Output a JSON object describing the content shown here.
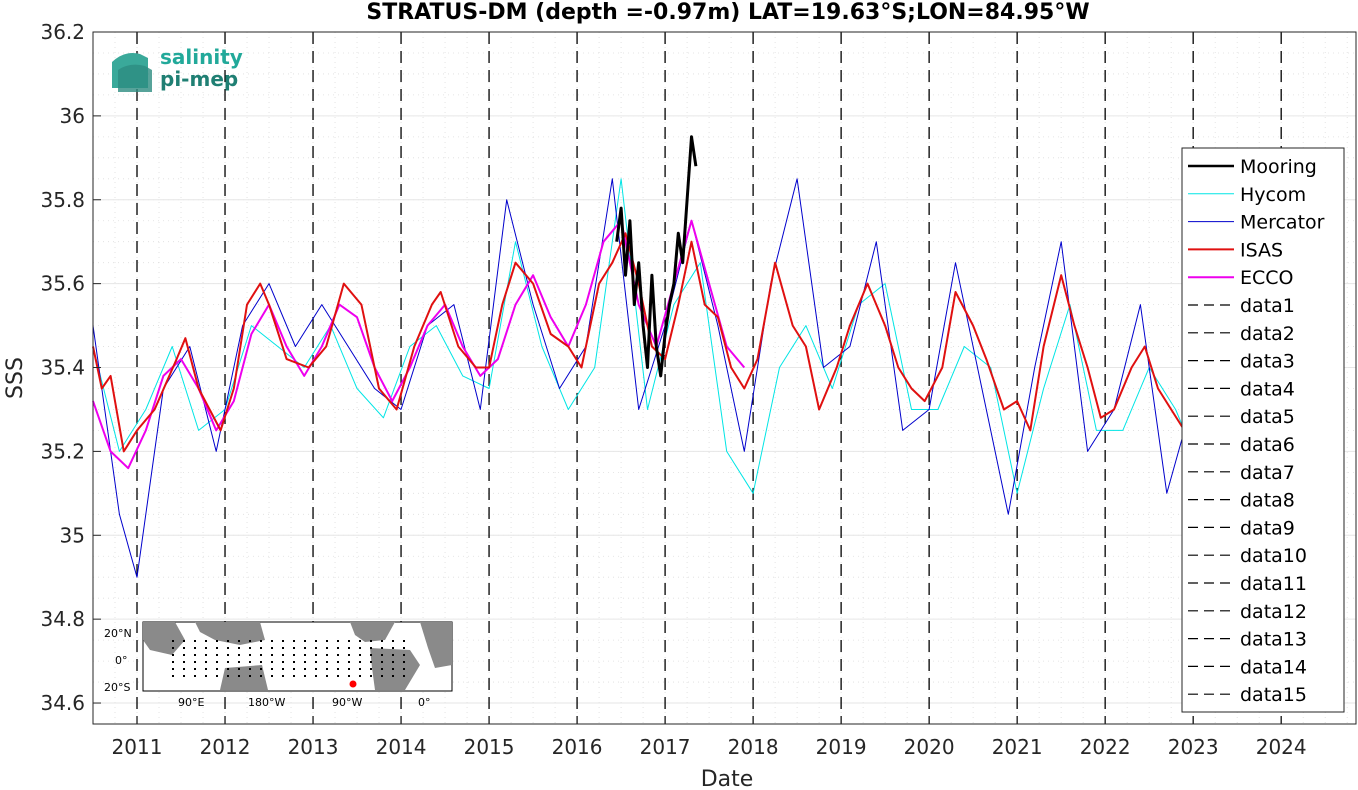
{
  "chart_data": {
    "type": "line",
    "title": "STRATUS-DM (depth =-0.97m) LAT=19.63°S;LON=84.95°W",
    "xlabel": "Date",
    "ylabel": "SSS",
    "xlim": [
      2010.5,
      2024.85
    ],
    "ylim": [
      34.55,
      36.2
    ],
    "x_ticks": [
      2011,
      2012,
      2013,
      2014,
      2015,
      2016,
      2017,
      2018,
      2019,
      2020,
      2021,
      2022,
      2023,
      2024
    ],
    "x_tick_labels": [
      "2011",
      "2012",
      "2013",
      "2014",
      "2015",
      "2016",
      "2017",
      "2018",
      "2019",
      "2020",
      "2021",
      "2022",
      "2023",
      "2024"
    ],
    "y_ticks": [
      34.6,
      34.8,
      35,
      35.2,
      35.4,
      35.6,
      35.8,
      36,
      36.2
    ],
    "y_tick_labels": [
      "34.6",
      "34.8",
      "35",
      "35.2",
      "35.4",
      "35.6",
      "35.8",
      "36",
      "36.2"
    ],
    "grid": true,
    "legend_position": "right",
    "series": [
      {
        "name": "Mooring",
        "color": "#000000",
        "x": [
          2016.45,
          2016.5,
          2016.55,
          2016.6,
          2016.65,
          2016.7,
          2016.75,
          2016.8,
          2016.85,
          2016.9,
          2016.95,
          2017.0,
          2017.05,
          2017.1,
          2017.15,
          2017.2,
          2017.25,
          2017.3,
          2017.35
        ],
        "y": [
          35.7,
          35.78,
          35.62,
          35.75,
          35.55,
          35.65,
          35.5,
          35.4,
          35.62,
          35.45,
          35.38,
          35.48,
          35.55,
          35.6,
          35.72,
          35.65,
          35.8,
          35.95,
          35.88
        ]
      },
      {
        "name": "Hycom",
        "color": "#00e5e5",
        "x": [
          2010.5,
          2010.8,
          2011.1,
          2011.4,
          2011.7,
          2012.0,
          2012.3,
          2012.6,
          2012.9,
          2013.2,
          2013.5,
          2013.8,
          2014.1,
          2014.4,
          2014.7,
          2015.0,
          2015.3,
          2015.6,
          2015.9,
          2016.2,
          2016.5,
          2016.8,
          2017.1,
          2017.4,
          2017.7,
          2018.0,
          2018.3,
          2018.6,
          2018.9,
          2019.2,
          2019.5,
          2019.8,
          2020.1,
          2020.4,
          2020.7,
          2021.0,
          2021.3,
          2021.6,
          2021.9,
          2022.2,
          2022.5,
          2022.8,
          2023.0
        ],
        "y": [
          35.45,
          35.2,
          35.3,
          35.45,
          35.25,
          35.3,
          35.5,
          35.45,
          35.4,
          35.5,
          35.35,
          35.28,
          35.45,
          35.5,
          35.38,
          35.35,
          35.7,
          35.45,
          35.3,
          35.4,
          35.85,
          35.3,
          35.55,
          35.65,
          35.2,
          35.1,
          35.4,
          35.5,
          35.35,
          35.55,
          35.6,
          35.3,
          35.3,
          35.45,
          35.4,
          35.1,
          35.35,
          35.55,
          35.25,
          35.25,
          35.4,
          35.3,
          35.2
        ]
      },
      {
        "name": "Mercator",
        "color": "#0000cc",
        "x": [
          2010.5,
          2010.8,
          2011.0,
          2011.3,
          2011.6,
          2011.9,
          2012.2,
          2012.5,
          2012.8,
          2013.1,
          2013.4,
          2013.7,
          2014.0,
          2014.3,
          2014.6,
          2014.9,
          2015.2,
          2015.5,
          2015.8,
          2016.1,
          2016.4,
          2016.7,
          2017.0,
          2017.3,
          2017.6,
          2017.9,
          2018.2,
          2018.5,
          2018.8,
          2019.1,
          2019.4,
          2019.7,
          2020.0,
          2020.3,
          2020.6,
          2020.9,
          2021.2,
          2021.5,
          2021.8,
          2022.1,
          2022.4,
          2022.7,
          2022.9
        ],
        "y": [
          35.5,
          35.05,
          34.9,
          35.35,
          35.45,
          35.2,
          35.5,
          35.6,
          35.45,
          35.55,
          35.45,
          35.35,
          35.3,
          35.5,
          35.55,
          35.3,
          35.8,
          35.55,
          35.35,
          35.45,
          35.85,
          35.3,
          35.5,
          35.75,
          35.5,
          35.2,
          35.6,
          35.85,
          35.4,
          35.45,
          35.7,
          35.25,
          35.3,
          35.65,
          35.35,
          35.05,
          35.4,
          35.7,
          35.2,
          35.3,
          35.55,
          35.1,
          35.25
        ]
      },
      {
        "name": "ISAS",
        "color": "#e01010",
        "x": [
          2010.5,
          2010.6,
          2010.7,
          2010.85,
          2011.0,
          2011.2,
          2011.45,
          2011.55,
          2011.7,
          2011.95,
          2012.1,
          2012.25,
          2012.4,
          2012.5,
          2012.7,
          2012.95,
          2013.15,
          2013.35,
          2013.55,
          2013.75,
          2013.95,
          2014.15,
          2014.35,
          2014.45,
          2014.65,
          2014.85,
          2015.0,
          2015.15,
          2015.3,
          2015.5,
          2015.7,
          2015.9,
          2016.05,
          2016.25,
          2016.4,
          2016.55,
          2016.7,
          2016.85,
          2017.0,
          2017.15,
          2017.3,
          2017.45,
          2017.6,
          2017.75,
          2017.9,
          2018.05,
          2018.25,
          2018.45,
          2018.6,
          2018.75,
          2018.95,
          2019.1,
          2019.3,
          2019.5,
          2019.65,
          2019.8,
          2019.95,
          2020.15,
          2020.3,
          2020.5,
          2020.65,
          2020.85,
          2021.0,
          2021.15,
          2021.3,
          2021.5,
          2021.65,
          2021.8,
          2021.95,
          2022.1,
          2022.3,
          2022.45,
          2022.6,
          2022.75,
          2022.9
        ],
        "y": [
          35.45,
          35.35,
          35.38,
          35.2,
          35.25,
          35.3,
          35.42,
          35.47,
          35.35,
          35.25,
          35.35,
          35.55,
          35.6,
          35.55,
          35.42,
          35.4,
          35.45,
          35.6,
          35.55,
          35.35,
          35.3,
          35.45,
          35.55,
          35.58,
          35.45,
          35.4,
          35.4,
          35.55,
          35.65,
          35.6,
          35.48,
          35.45,
          35.4,
          35.6,
          35.65,
          35.72,
          35.6,
          35.45,
          35.42,
          35.55,
          35.7,
          35.55,
          35.52,
          35.4,
          35.35,
          35.42,
          35.65,
          35.5,
          35.45,
          35.3,
          35.4,
          35.5,
          35.6,
          35.5,
          35.4,
          35.35,
          35.32,
          35.4,
          35.58,
          35.5,
          35.42,
          35.3,
          35.32,
          35.25,
          35.45,
          35.62,
          35.5,
          35.4,
          35.28,
          35.3,
          35.4,
          35.45,
          35.35,
          35.3,
          35.25
        ]
      },
      {
        "name": "ECCO",
        "color": "#ee00ee",
        "x": [
          2010.5,
          2010.7,
          2010.9,
          2011.1,
          2011.3,
          2011.5,
          2011.7,
          2011.9,
          2012.1,
          2012.3,
          2012.5,
          2012.7,
          2012.9,
          2013.1,
          2013.3,
          2013.5,
          2013.7,
          2013.9,
          2014.1,
          2014.3,
          2014.5,
          2014.7,
          2014.9,
          2015.1,
          2015.3,
          2015.5,
          2015.7,
          2015.9,
          2016.1,
          2016.3,
          2016.5,
          2016.7,
          2016.9,
          2017.1,
          2017.3,
          2017.5,
          2017.7,
          2017.9
        ],
        "y": [
          35.32,
          35.2,
          35.16,
          35.25,
          35.38,
          35.42,
          35.35,
          35.25,
          35.32,
          35.48,
          35.55,
          35.45,
          35.38,
          35.45,
          35.55,
          35.52,
          35.4,
          35.32,
          35.4,
          35.5,
          35.55,
          35.45,
          35.38,
          35.42,
          35.55,
          35.62,
          35.52,
          35.45,
          35.55,
          35.7,
          35.75,
          35.55,
          35.45,
          35.6,
          35.75,
          35.6,
          35.45,
          35.4
        ]
      }
    ],
    "dashed_verticals": [
      2011,
      2012,
      2013,
      2014,
      2015,
      2016,
      2017,
      2018,
      2019,
      2020,
      2021,
      2022,
      2023,
      2024
    ],
    "legend_entries": [
      "Mooring",
      "Hycom",
      "Mercator",
      "ISAS",
      "ECCO",
      "data1",
      "data2",
      "data3",
      "data4",
      "data5",
      "data6",
      "data7",
      "data8",
      "data9",
      "data10",
      "data11",
      "data12",
      "data13",
      "data14",
      "data15"
    ]
  },
  "logo": {
    "line1": "salinity",
    "line2": "pi-mep"
  },
  "inset_map": {
    "lat_labels": [
      "20°N",
      "0°",
      "20°S"
    ],
    "lon_labels": [
      "90°E",
      "180°W",
      "90°W",
      "0°"
    ],
    "land_color": "#8a8a8a",
    "marker_color": "#ff0000"
  }
}
